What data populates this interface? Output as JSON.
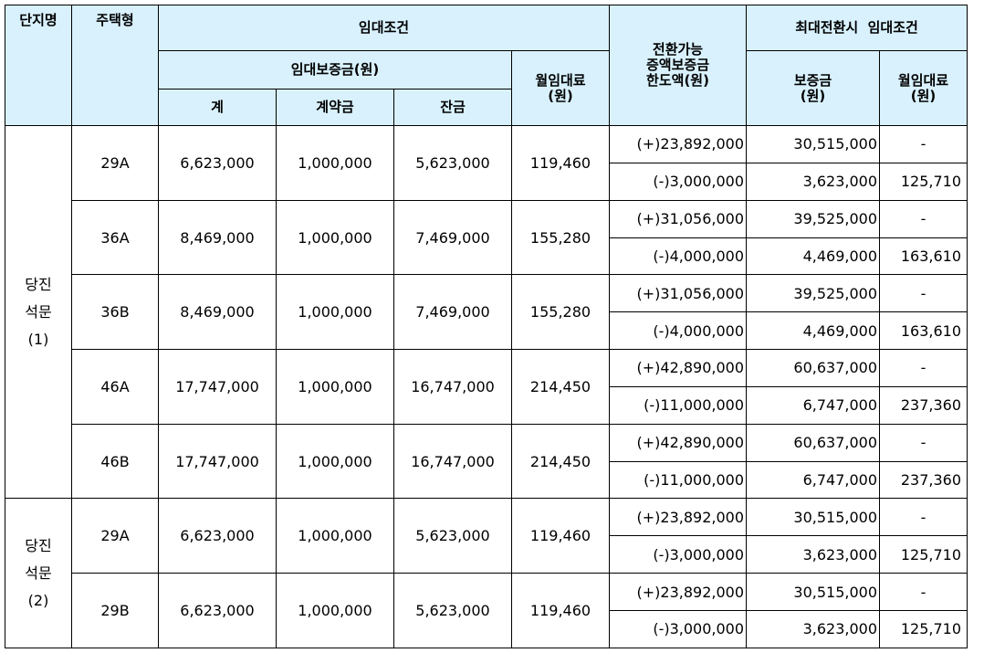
{
  "headers": {
    "complex": "단지명",
    "type": "주택형",
    "rent_conditions": "임대조건",
    "deposit": "임대보증금(원)",
    "total": "계",
    "contract": "계약금",
    "balance": "잔금",
    "monthly_rent": "월임대료\n(원)",
    "convertible": "전환가능\n증액보증금\n한도액(원)",
    "max_conversion": "최대전환시  임대조건",
    "max_deposit": "보증금\n(원)",
    "max_rent": "월임대료\n(원)"
  },
  "groups": [
    {
      "complex": "당진\n석문\n(1)",
      "rows": [
        {
          "type": "29A",
          "total": "6,623,000",
          "contract": "1,000,000",
          "balance": "5,623,000",
          "rent": "119,460",
          "plus": {
            "limit": "(+)23,892,000",
            "deposit": "30,515,000",
            "rent": "-"
          },
          "minus": {
            "limit": "(-)3,000,000",
            "deposit": "3,623,000",
            "rent": "125,710"
          }
        },
        {
          "type": "36A",
          "total": "8,469,000",
          "contract": "1,000,000",
          "balance": "7,469,000",
          "rent": "155,280",
          "plus": {
            "limit": "(+)31,056,000",
            "deposit": "39,525,000",
            "rent": "-"
          },
          "minus": {
            "limit": "(-)4,000,000",
            "deposit": "4,469,000",
            "rent": "163,610"
          }
        },
        {
          "type": "36B",
          "total": "8,469,000",
          "contract": "1,000,000",
          "balance": "7,469,000",
          "rent": "155,280",
          "plus": {
            "limit": "(+)31,056,000",
            "deposit": "39,525,000",
            "rent": "-"
          },
          "minus": {
            "limit": "(-)4,000,000",
            "deposit": "4,469,000",
            "rent": "163,610"
          }
        },
        {
          "type": "46A",
          "total": "17,747,000",
          "contract": "1,000,000",
          "balance": "16,747,000",
          "rent": "214,450",
          "plus": {
            "limit": "(+)42,890,000",
            "deposit": "60,637,000",
            "rent": "-"
          },
          "minus": {
            "limit": "(-)11,000,000",
            "deposit": "6,747,000",
            "rent": "237,360"
          }
        },
        {
          "type": "46B",
          "total": "17,747,000",
          "contract": "1,000,000",
          "balance": "16,747,000",
          "rent": "214,450",
          "plus": {
            "limit": "(+)42,890,000",
            "deposit": "60,637,000",
            "rent": "-"
          },
          "minus": {
            "limit": "(-)11,000,000",
            "deposit": "6,747,000",
            "rent": "237,360"
          }
        }
      ]
    },
    {
      "complex": "당진\n석문\n(2)",
      "rows": [
        {
          "type": "29A",
          "total": "6,623,000",
          "contract": "1,000,000",
          "balance": "5,623,000",
          "rent": "119,460",
          "plus": {
            "limit": "(+)23,892,000",
            "deposit": "30,515,000",
            "rent": "-"
          },
          "minus": {
            "limit": "(-)3,000,000",
            "deposit": "3,623,000",
            "rent": "125,710"
          }
        },
        {
          "type": "29B",
          "total": "6,623,000",
          "contract": "1,000,000",
          "balance": "5,623,000",
          "rent": "119,460",
          "plus": {
            "limit": "(+)23,892,000",
            "deposit": "30,515,000",
            "rent": "-"
          },
          "minus": {
            "limit": "(-)3,000,000",
            "deposit": "3,623,000",
            "rent": "125,710"
          }
        }
      ]
    }
  ]
}
